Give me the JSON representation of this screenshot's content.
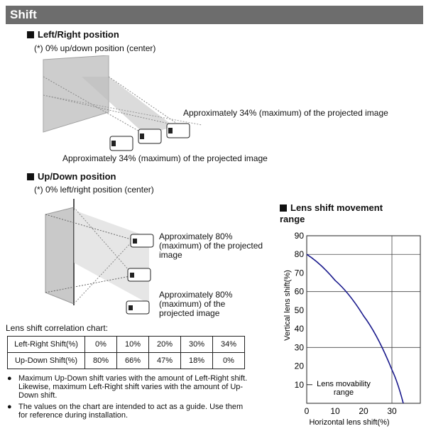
{
  "title": "Shift",
  "left_right": {
    "heading": "Left/Right position",
    "note": "(*) 0% up/down position (center)",
    "callout_top": "Approximately 34% (maximum) of the projected image",
    "callout_bottom": "Approximately 34% (maximum) of the projected image"
  },
  "up_down": {
    "heading": "Up/Down position",
    "note": "(*) 0% left/right position (center)",
    "callout_top": [
      "Approximately 80%",
      "(maximum) of the projected",
      "image"
    ],
    "callout_bottom": [
      "Approximately 80%",
      "(maximum) of the",
      "projected image"
    ]
  },
  "correlation": {
    "caption": "Lens shift correlation chart:",
    "rows": [
      {
        "label": "Left-Right Shift(%)",
        "values": [
          "0%",
          "10%",
          "20%",
          "30%",
          "34%"
        ]
      },
      {
        "label": "Up-Down Shift(%)",
        "values": [
          "80%",
          "66%",
          "47%",
          "18%",
          "0%"
        ]
      }
    ]
  },
  "notes": [
    {
      "bullet": "●",
      "lines": [
        "Maximum Up-Down shift varies with the amount of Left-Right shift.",
        "Likewise, maximum Left-Right shift varies with the amount of Up-",
        "Down shift."
      ]
    },
    {
      "bullet": "●",
      "lines": [
        "The values on the chart are intended to act as a guide. Use them",
        "for reference during installation."
      ]
    }
  ],
  "chart_data": {
    "type": "line",
    "title": "Lens shift movement range",
    "title_lines": [
      "Lens shift movement",
      "range"
    ],
    "xlabel": "Horizontal lens shift(%)",
    "ylabel": "Vertical lens shift(%)",
    "xlim": [
      0,
      34
    ],
    "ylim": [
      0,
      90
    ],
    "x_ticks": [
      0,
      10,
      20,
      30
    ],
    "y_ticks": [
      10,
      20,
      30,
      40,
      50,
      60,
      70,
      80,
      90
    ],
    "grid": true,
    "annotation": [
      "Lens movability",
      "range"
    ],
    "series": [
      {
        "x": [
          0,
          10,
          20,
          30,
          34
        ],
        "y": [
          80,
          66,
          47,
          18,
          0
        ],
        "color": "#1a1a8c"
      }
    ]
  }
}
